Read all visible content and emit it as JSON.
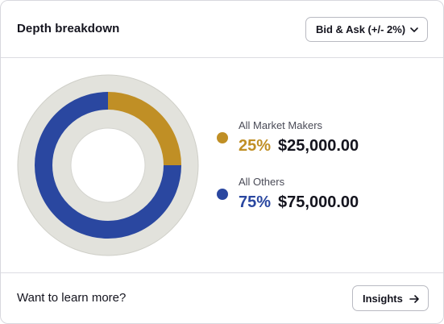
{
  "header": {
    "title": "Depth breakdown",
    "range_select": {
      "selected": "Bid & Ask (+/- 2%)",
      "icon": "chevron-down-icon"
    }
  },
  "chart_data": {
    "type": "pie",
    "style": "donut",
    "title": "",
    "slices": [
      {
        "name": "All Market Makers",
        "value": 25000,
        "percent": 25,
        "percent_label": "25%",
        "amount_label": "$25,000.00",
        "color": "#c08f25"
      },
      {
        "name": "All Others",
        "value": 75000,
        "percent": 75,
        "percent_label": "75%",
        "amount_label": "$75,000.00",
        "color": "#2a47a0"
      }
    ],
    "track_color": "#e2e2dc",
    "legend_position": "right"
  },
  "footer": {
    "prompt": "Want to learn more?",
    "insights_button": {
      "label": "Insights",
      "icon": "arrow-right-icon"
    }
  }
}
